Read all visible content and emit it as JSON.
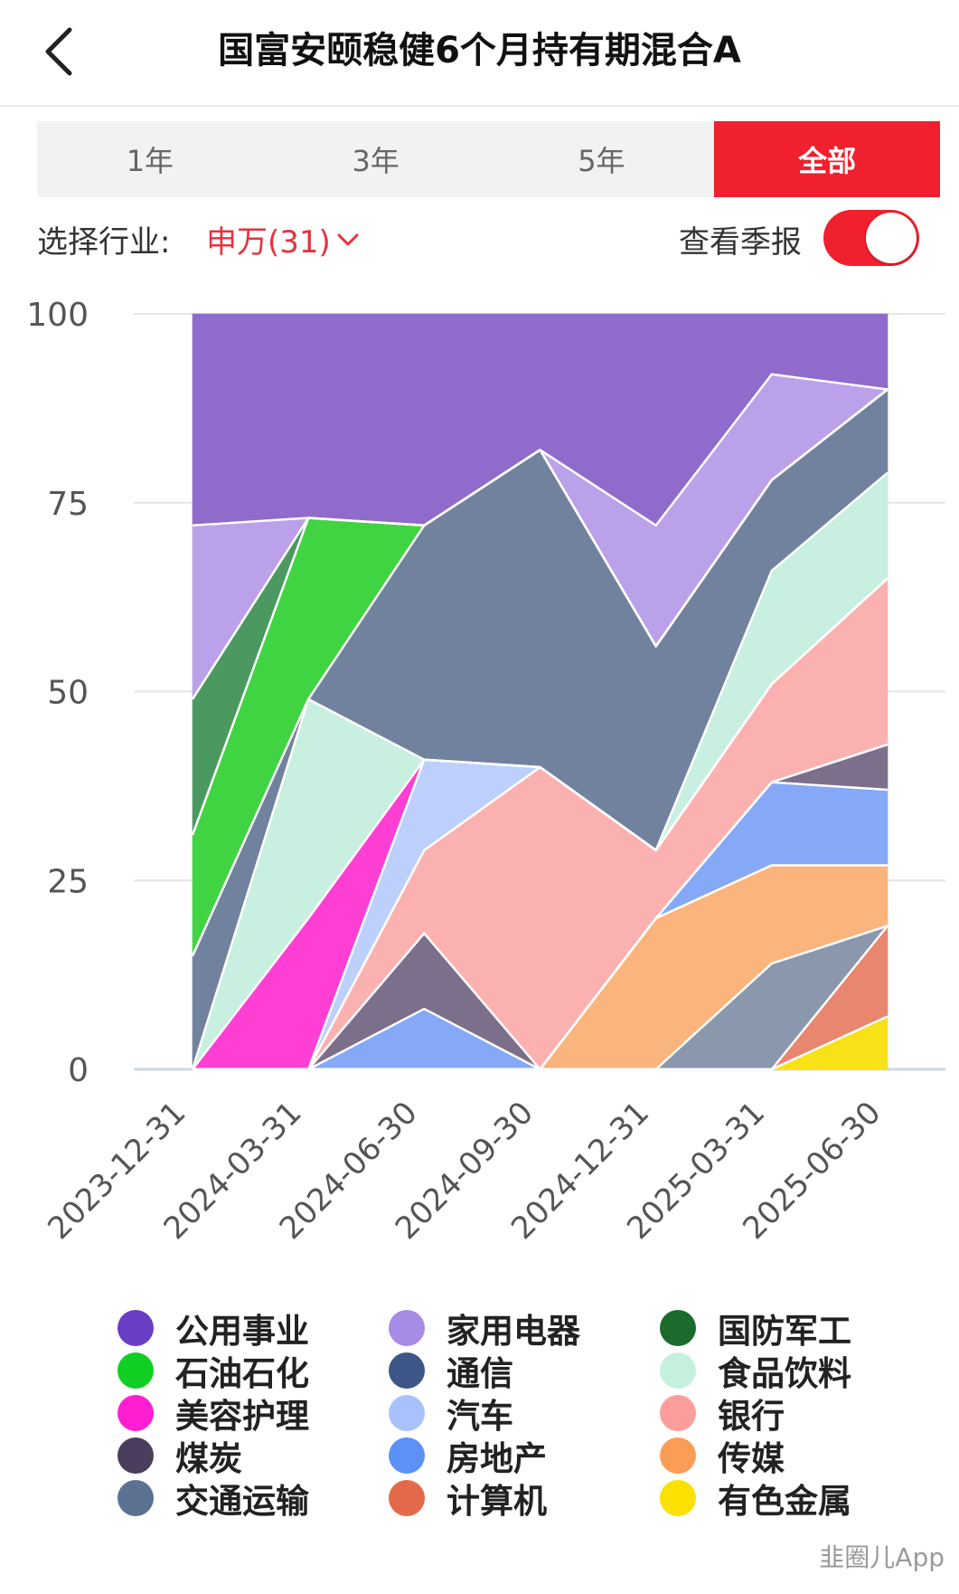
{
  "header": {
    "title": "国富安颐稳健6个月持有期混合A"
  },
  "tabs": [
    {
      "label": "1年",
      "active": false
    },
    {
      "label": "3年",
      "active": false
    },
    {
      "label": "5年",
      "active": false
    },
    {
      "label": "全部",
      "active": true
    }
  ],
  "filter": {
    "label": "选择行业:",
    "value": "申万(31)"
  },
  "report_toggle": {
    "label": "查看季报",
    "on": true
  },
  "colors": {
    "accent": "#f0202e",
    "select_text": "#e8313d"
  },
  "watermark": "韭圈儿App",
  "chart_data": {
    "type": "area",
    "stacked": true,
    "x": [
      "2023-12-31",
      "2024-03-31",
      "2024-06-30",
      "2024-09-30",
      "2024-12-31",
      "2025-03-31",
      "2025-06-30"
    ],
    "ylim": [
      0,
      100
    ],
    "yticks": [
      0,
      25,
      50,
      75,
      100
    ],
    "grid": true,
    "legend_position": "bottom",
    "series": [
      {
        "name": "有色金属",
        "color": "#f8e116",
        "values": [
          0,
          0,
          0,
          0,
          0,
          0,
          7
        ]
      },
      {
        "name": "计算机",
        "color": "#e8866f",
        "values": [
          0,
          0,
          0,
          0,
          0,
          0,
          12
        ]
      },
      {
        "name": "交通运输",
        "color": "#8a97ac",
        "values": [
          0,
          0,
          0,
          0,
          0,
          14,
          0
        ]
      },
      {
        "name": "传媒",
        "color": "#fbb47b",
        "values": [
          0,
          0,
          0,
          0,
          20,
          13,
          8
        ]
      },
      {
        "name": "房地产",
        "color": "#85a8f7",
        "values": [
          0,
          0,
          8,
          0,
          0,
          11,
          10
        ]
      },
      {
        "name": "煤炭",
        "color": "#7b6f8b",
        "values": [
          0,
          0,
          10,
          0,
          0,
          0,
          6
        ]
      },
      {
        "name": "银行",
        "color": "#fcb1b1",
        "values": [
          0,
          0,
          11,
          40,
          9,
          13,
          22
        ]
      },
      {
        "name": "汽车",
        "color": "#bcd0fb",
        "values": [
          0,
          0,
          12,
          0,
          0,
          0,
          0
        ]
      },
      {
        "name": "美容护理",
        "color": "#ff3fd3",
        "values": [
          0,
          20,
          0,
          0,
          0,
          0,
          0
        ]
      },
      {
        "name": "食品饮料",
        "color": "#c8efdf",
        "values": [
          0,
          29,
          0,
          0,
          0,
          15,
          14
        ]
      },
      {
        "name": "通信",
        "color": "#71829e",
        "values": [
          15,
          0,
          31,
          42,
          27,
          12,
          11
        ]
      },
      {
        "name": "石油石化",
        "color": "#41d442",
        "values": [
          16,
          24,
          0,
          0,
          0,
          0,
          0
        ]
      },
      {
        "name": "国防军工",
        "color": "#4b9960",
        "values": [
          18,
          0,
          0,
          0,
          0,
          0,
          0
        ]
      },
      {
        "name": "家用电器",
        "color": "#baa1e9",
        "values": [
          23,
          0,
          0,
          0,
          16,
          14,
          0
        ]
      },
      {
        "name": "公用事业",
        "color": "#8f6bcc",
        "values": [
          28,
          27,
          28,
          18,
          28,
          8,
          10
        ]
      }
    ],
    "legend": [
      {
        "name": "公用事业",
        "color": "#6a3dc5"
      },
      {
        "name": "家用电器",
        "color": "#a88be4"
      },
      {
        "name": "国防军工",
        "color": "#1b6b2c"
      },
      {
        "name": "石油石化",
        "color": "#0fcf22"
      },
      {
        "name": "通信",
        "color": "#3d5587"
      },
      {
        "name": "食品饮料",
        "color": "#c7f1df"
      },
      {
        "name": "美容护理",
        "color": "#ff1ed2"
      },
      {
        "name": "汽车",
        "color": "#a9c2fd"
      },
      {
        "name": "银行",
        "color": "#fb9d9b"
      },
      {
        "name": "煤炭",
        "color": "#4a3d5e"
      },
      {
        "name": "房地产",
        "color": "#5c92f7"
      },
      {
        "name": "传媒",
        "color": "#fb9d57"
      },
      {
        "name": "交通运输",
        "color": "#5d7193"
      },
      {
        "name": "计算机",
        "color": "#e4694b"
      },
      {
        "name": "有色金属",
        "color": "#fbe101"
      }
    ]
  }
}
